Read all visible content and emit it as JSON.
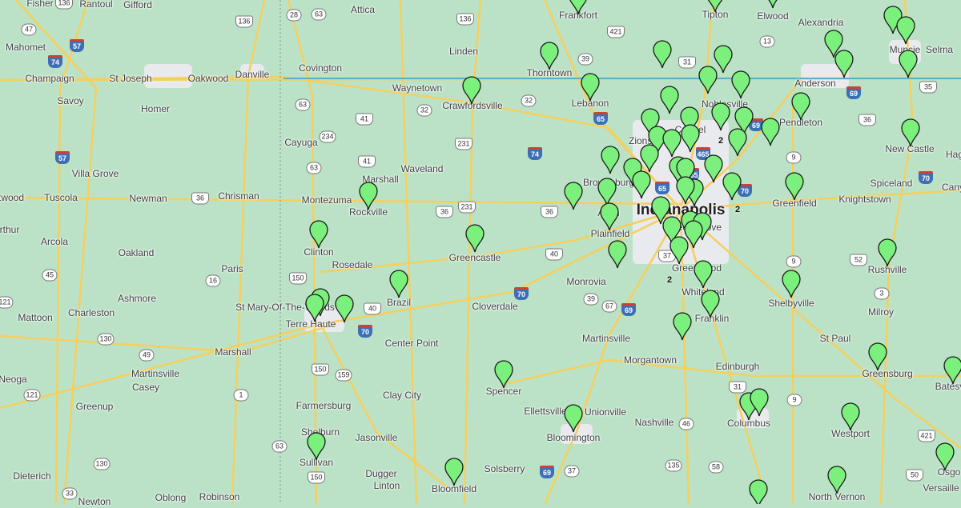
{
  "map": {
    "background_color": "#bbe2c6",
    "road_color": "#f5cf5d",
    "route_line_color": "#2aa5d8",
    "marker_color": "#7cf07c",
    "marker_icon": "map-pin-icon",
    "places": [
      "Fisher",
      "Rantoul",
      "Gifford",
      "Attica",
      "Frankfort",
      "Tipton",
      "Elwood",
      "Alexandria",
      "Mahomet",
      "Muncie",
      "Selma",
      "Linden",
      "Covington",
      "Thorntown",
      "Champaign",
      "St Joseph",
      "Oakwood",
      "Danville",
      "Anderson",
      "Waynetown",
      "Savoy",
      "Homer",
      "Crawfordsville",
      "Lebanon",
      "Noblesville",
      "Pendleton",
      "Carmel",
      "Zionsville",
      "Cayuga",
      "New Castle",
      "Hag",
      "Villa Grove",
      "Waveland",
      "Marshall",
      "Brownsburg",
      "Spiceland",
      "Tuscola",
      "Newman",
      "Chrisman",
      "twood",
      "Montezuma",
      "Knightstown",
      "Cany",
      "Greenfield",
      "Indianapolis",
      "Avon",
      "Rockville",
      "Plainfield",
      "Beech Grove",
      "rthur",
      "Arcola",
      "Clinton",
      "Oakland",
      "Rosedale",
      "Greencastle",
      "Greenwood",
      "Rushville",
      "Paris",
      "Monrovia",
      "Whiteland",
      "Shelbyville",
      "Ashmore",
      "Brazil",
      "St Mary-Of-The-Woods",
      "Charleston",
      "Cloverdale",
      "Milroy",
      "Mattoon",
      "Terre Haute",
      "Franklin",
      "Martinsville",
      "St Paul",
      "Center Point",
      "Marshall",
      "Morgantown",
      "Edinburgh",
      "Greensburg",
      "Batesv",
      "Neoga",
      "Martinsville",
      "Casey",
      "Spencer",
      "Clay City",
      "Farmersburg",
      "Greenup",
      "Columbus",
      "Ellettsville",
      "Unionville",
      "Nashville",
      "Westport",
      "Shelburn",
      "Jasonville",
      "Bloomington",
      "Sullivan",
      "Dugger",
      "Solsberry",
      "Dieterich",
      "Osgo",
      "Versaille",
      "Linton",
      "Bloomfield",
      "Newton",
      "Oblong",
      "Robinson",
      "North Vernon"
    ],
    "interstate_shields": [
      "74",
      "57",
      "57",
      "74",
      "65",
      "465",
      "465",
      "65",
      "69",
      "70",
      "69",
      "70",
      "70",
      "70",
      "69",
      "65",
      "69"
    ],
    "us_shields": [
      "136",
      "136",
      "136",
      "41",
      "41",
      "231",
      "231",
      "36",
      "36",
      "36",
      "421",
      "31",
      "40",
      "40",
      "150",
      "150",
      "150",
      "37",
      "31",
      "421",
      "52",
      "35",
      "36",
      "50"
    ],
    "state_shields": [
      "47",
      "28",
      "63",
      "63",
      "63",
      "234",
      "32",
      "32",
      "39",
      "13",
      "9",
      "9",
      "9",
      "3",
      "45",
      "16",
      "121",
      "130",
      "49",
      "1",
      "121",
      "159",
      "130",
      "33",
      "63",
      "67",
      "39",
      "46",
      "58",
      "135",
      "37"
    ],
    "marker_counts": [
      "2",
      "2",
      "2"
    ]
  }
}
